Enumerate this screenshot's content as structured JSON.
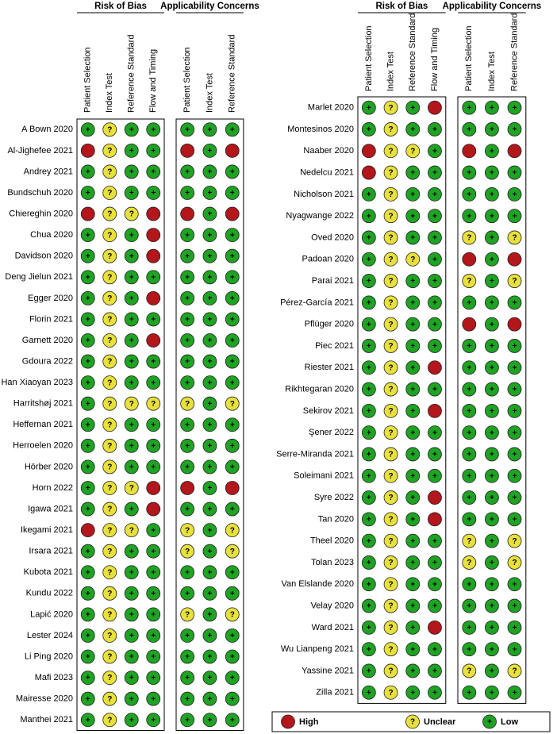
{
  "legend": {
    "items": [
      {
        "label": "High",
        "color": "#b3161b"
      },
      {
        "label": "Unclear",
        "symbol": "?",
        "color": "#e8e13c"
      },
      {
        "label": "Low",
        "symbol": "+",
        "color": "#1fa323"
      }
    ]
  },
  "panels": [
    {
      "groups": [
        {
          "title": "Risk of Bias",
          "columns": [
            "Patient Selection",
            "Index Test",
            "Reference Standard",
            "Flow and Timing"
          ]
        },
        {
          "title": "Applicability Concerns",
          "columns": [
            "Patient Selection",
            "Index Test",
            "Reference Standard"
          ]
        }
      ],
      "studies": [
        {
          "name": "A Bown 2020",
          "ratings": [
            "Low",
            "Unclear",
            "Low",
            "Low",
            "Low",
            "Low",
            "Low"
          ]
        },
        {
          "name": "Al-Jighefee 2021",
          "ratings": [
            "High",
            "Unclear",
            "Low",
            "Low",
            "High",
            "Low",
            "High"
          ]
        },
        {
          "name": "Andrey 2021",
          "ratings": [
            "Low",
            "Unclear",
            "Low",
            "Low",
            "Low",
            "Low",
            "Low"
          ]
        },
        {
          "name": "Bundschuh 2020",
          "ratings": [
            "Low",
            "Unclear",
            "Low",
            "Low",
            "Low",
            "Low",
            "Low"
          ]
        },
        {
          "name": "Chiereghin 2020",
          "ratings": [
            "High",
            "Unclear",
            "Unclear",
            "High",
            "High",
            "Low",
            "High"
          ]
        },
        {
          "name": "Chua 2020",
          "ratings": [
            "Low",
            "Unclear",
            "Low",
            "High",
            "Low",
            "Low",
            "Low"
          ]
        },
        {
          "name": "Davidson 2020",
          "ratings": [
            "Low",
            "Unclear",
            "Low",
            "High",
            "Low",
            "Low",
            "Low"
          ]
        },
        {
          "name": "Deng Jielun 2021",
          "ratings": [
            "Low",
            "Unclear",
            "Low",
            "Low",
            "Low",
            "Low",
            "Low"
          ]
        },
        {
          "name": "Egger 2020",
          "ratings": [
            "Low",
            "Unclear",
            "Low",
            "High",
            "Low",
            "Low",
            "Low"
          ]
        },
        {
          "name": "Florin 2021",
          "ratings": [
            "Low",
            "Unclear",
            "Low",
            "Low",
            "Low",
            "Low",
            "Low"
          ]
        },
        {
          "name": "Garnett 2020",
          "ratings": [
            "Low",
            "Unclear",
            "Low",
            "High",
            "Low",
            "Low",
            "Low"
          ]
        },
        {
          "name": "Gdoura 2022",
          "ratings": [
            "Low",
            "Unclear",
            "Low",
            "Low",
            "Low",
            "Low",
            "Low"
          ]
        },
        {
          "name": "Han Xiaoyan 2023",
          "ratings": [
            "Low",
            "Unclear",
            "Low",
            "Low",
            "Low",
            "Low",
            "Low"
          ]
        },
        {
          "name": "Harritshøj 2021",
          "ratings": [
            "Low",
            "Unclear",
            "Unclear",
            "Unclear",
            "Unclear",
            "Low",
            "Unclear"
          ]
        },
        {
          "name": "Heffernan 2021",
          "ratings": [
            "Low",
            "Unclear",
            "Low",
            "Low",
            "Low",
            "Low",
            "Low"
          ]
        },
        {
          "name": "Herroelen 2020",
          "ratings": [
            "Low",
            "Unclear",
            "Low",
            "Low",
            "Low",
            "Low",
            "Low"
          ]
        },
        {
          "name": "Hörber 2020",
          "ratings": [
            "Low",
            "Unclear",
            "Low",
            "Low",
            "Low",
            "Low",
            "Low"
          ]
        },
        {
          "name": "Horn 2022",
          "ratings": [
            "Low",
            "Unclear",
            "Unclear",
            "High",
            "High",
            "Low",
            "High"
          ]
        },
        {
          "name": "Igawa 2021",
          "ratings": [
            "Low",
            "Unclear",
            "Low",
            "High",
            "Low",
            "Low",
            "Low"
          ]
        },
        {
          "name": "Ikegami 2021",
          "ratings": [
            "High",
            "Unclear",
            "Unclear",
            "Low",
            "Unclear",
            "Low",
            "Unclear"
          ]
        },
        {
          "name": "Irsara 2021",
          "ratings": [
            "Low",
            "Unclear",
            "Low",
            "Low",
            "Unclear",
            "Low",
            "Unclear"
          ]
        },
        {
          "name": "Kubota 2021",
          "ratings": [
            "Low",
            "Unclear",
            "Low",
            "Low",
            "Low",
            "Low",
            "Low"
          ]
        },
        {
          "name": "Kundu 2022",
          "ratings": [
            "Low",
            "Unclear",
            "Low",
            "Low",
            "Low",
            "Low",
            "Low"
          ]
        },
        {
          "name": "Lapić 2020",
          "ratings": [
            "Low",
            "Unclear",
            "Low",
            "Low",
            "Unclear",
            "Low",
            "Unclear"
          ]
        },
        {
          "name": "Lester 2024",
          "ratings": [
            "Low",
            "Unclear",
            "Low",
            "Low",
            "Low",
            "Low",
            "Low"
          ]
        },
        {
          "name": "Li Ping 2020",
          "ratings": [
            "Low",
            "Unclear",
            "Low",
            "Low",
            "Low",
            "Low",
            "Low"
          ]
        },
        {
          "name": "Mafi 2023",
          "ratings": [
            "Low",
            "Unclear",
            "Low",
            "Low",
            "Low",
            "Low",
            "Low"
          ]
        },
        {
          "name": "Mairesse 2020",
          "ratings": [
            "Low",
            "Unclear",
            "Low",
            "Low",
            "Low",
            "Low",
            "Low"
          ]
        },
        {
          "name": "Manthei 2021",
          "ratings": [
            "Low",
            "Unclear",
            "Low",
            "Low",
            "Low",
            "Low",
            "Low"
          ]
        }
      ]
    },
    {
      "groups": [
        {
          "title": "Risk of Bias",
          "columns": [
            "Patient Selection",
            "Index Test",
            "Reference Standard",
            "Flow and Timing"
          ]
        },
        {
          "title": "Applicability Concerns",
          "columns": [
            "Patient Selection",
            "Index Test",
            "Reference Standard"
          ]
        }
      ],
      "studies": [
        {
          "name": "Marlet 2020",
          "ratings": [
            "Low",
            "Unclear",
            "Low",
            "High",
            "Low",
            "Low",
            "Low"
          ]
        },
        {
          "name": "Montesinos 2020",
          "ratings": [
            "Low",
            "Unclear",
            "Low",
            "Low",
            "Low",
            "Low",
            "Low"
          ]
        },
        {
          "name": "Naaber 2020",
          "ratings": [
            "High",
            "Unclear",
            "Unclear",
            "Low",
            "High",
            "Low",
            "High"
          ]
        },
        {
          "name": "Nedelcu 2021",
          "ratings": [
            "High",
            "Unclear",
            "Low",
            "Low",
            "Low",
            "Low",
            "Low"
          ]
        },
        {
          "name": "Nicholson 2021",
          "ratings": [
            "Low",
            "Unclear",
            "Low",
            "Low",
            "Low",
            "Low",
            "Low"
          ]
        },
        {
          "name": "Nyagwange 2022",
          "ratings": [
            "Low",
            "Unclear",
            "Low",
            "Low",
            "Low",
            "Low",
            "Low"
          ]
        },
        {
          "name": "Oved 2020",
          "ratings": [
            "Low",
            "Unclear",
            "Low",
            "Low",
            "Unclear",
            "Low",
            "Unclear"
          ]
        },
        {
          "name": "Padoan 2020",
          "ratings": [
            "Low",
            "Unclear",
            "Unclear",
            "Low",
            "High",
            "Low",
            "High"
          ]
        },
        {
          "name": "Parai 2021",
          "ratings": [
            "Low",
            "Unclear",
            "Low",
            "Low",
            "Unclear",
            "Low",
            "Unclear"
          ]
        },
        {
          "name": "Pérez-García 2021",
          "ratings": [
            "Low",
            "Unclear",
            "Low",
            "Low",
            "Low",
            "Low",
            "Low"
          ]
        },
        {
          "name": "Pflüger 2020",
          "ratings": [
            "Low",
            "Unclear",
            "Low",
            "Low",
            "High",
            "Low",
            "High"
          ]
        },
        {
          "name": "Piec 2021",
          "ratings": [
            "Low",
            "Unclear",
            "Low",
            "Low",
            "Low",
            "Low",
            "Low"
          ]
        },
        {
          "name": "Riester 2021",
          "ratings": [
            "Low",
            "Unclear",
            "Low",
            "High",
            "Low",
            "Low",
            "Low"
          ]
        },
        {
          "name": "Rikhtegaran 2020",
          "ratings": [
            "Low",
            "Unclear",
            "Low",
            "Low",
            "Low",
            "Low",
            "Low"
          ]
        },
        {
          "name": "Sekirov 2021",
          "ratings": [
            "Low",
            "Unclear",
            "Low",
            "High",
            "Low",
            "Low",
            "Low"
          ]
        },
        {
          "name": "Şener 2022",
          "ratings": [
            "Low",
            "Unclear",
            "Low",
            "Low",
            "Low",
            "Low",
            "Low"
          ]
        },
        {
          "name": "Serre-Miranda 2021",
          "ratings": [
            "Low",
            "Unclear",
            "Low",
            "Low",
            "Low",
            "Low",
            "Low"
          ]
        },
        {
          "name": "Soleimani 2021",
          "ratings": [
            "Low",
            "Unclear",
            "Low",
            "Low",
            "Low",
            "Low",
            "Low"
          ]
        },
        {
          "name": "Syre 2022",
          "ratings": [
            "Low",
            "Unclear",
            "Low",
            "High",
            "Low",
            "Low",
            "Low"
          ]
        },
        {
          "name": "Tan 2020",
          "ratings": [
            "Low",
            "Unclear",
            "Low",
            "High",
            "Low",
            "Low",
            "Low"
          ]
        },
        {
          "name": "Theel 2020",
          "ratings": [
            "Low",
            "Unclear",
            "Low",
            "Low",
            "Unclear",
            "Low",
            "Unclear"
          ]
        },
        {
          "name": "Tolan 2023",
          "ratings": [
            "Low",
            "Unclear",
            "Low",
            "Low",
            "Unclear",
            "Low",
            "Unclear"
          ]
        },
        {
          "name": "Van Elslande 2020",
          "ratings": [
            "Low",
            "Unclear",
            "Low",
            "Low",
            "Low",
            "Low",
            "Low"
          ]
        },
        {
          "name": "Velay 2020",
          "ratings": [
            "Low",
            "Unclear",
            "Low",
            "Low",
            "Low",
            "Low",
            "Low"
          ]
        },
        {
          "name": "Ward 2021",
          "ratings": [
            "Low",
            "Unclear",
            "Low",
            "High",
            "Low",
            "Low",
            "Low"
          ]
        },
        {
          "name": "Wu Lianpeng 2021",
          "ratings": [
            "Low",
            "Unclear",
            "Low",
            "Low",
            "Low",
            "Low",
            "Low"
          ]
        },
        {
          "name": "Yassine 2021",
          "ratings": [
            "Low",
            "Unclear",
            "Low",
            "Low",
            "Unclear",
            "Low",
            "Unclear"
          ]
        },
        {
          "name": "Zilla 2021",
          "ratings": [
            "Low",
            "Unclear",
            "Low",
            "Low",
            "Low",
            "Low",
            "Low"
          ]
        }
      ]
    }
  ]
}
